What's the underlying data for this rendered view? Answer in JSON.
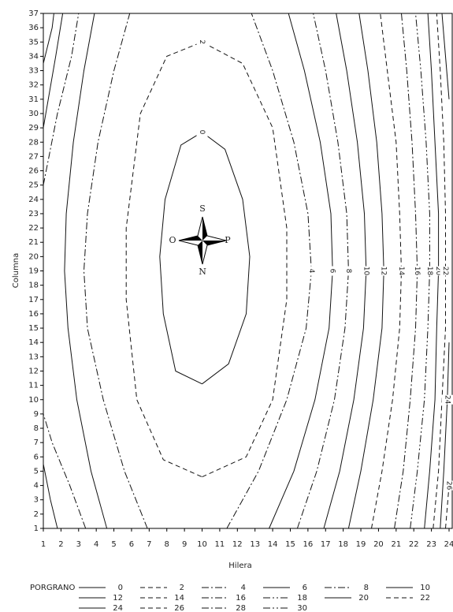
{
  "chart_data": {
    "type": "contour",
    "x_label": "Hilera",
    "y_label": "Columna",
    "legend_title": "PORGRANO",
    "xlim": [
      1,
      24
    ],
    "ylim": [
      1,
      37
    ],
    "xticks": [
      1,
      2,
      3,
      4,
      5,
      6,
      7,
      8,
      9,
      10,
      11,
      12,
      13,
      14,
      15,
      16,
      17,
      18,
      19,
      20,
      21,
      22,
      23,
      24
    ],
    "yticks": [
      1,
      2,
      3,
      4,
      5,
      6,
      7,
      8,
      9,
      10,
      11,
      12,
      13,
      14,
      15,
      16,
      17,
      18,
      19,
      20,
      21,
      22,
      23,
      24,
      25,
      26,
      27,
      28,
      29,
      30,
      31,
      32,
      33,
      34,
      35,
      36,
      37
    ],
    "compass": {
      "top": "S",
      "left": "O",
      "right": "P",
      "bottom": "N"
    },
    "contours": [
      {
        "level": "0",
        "style": "solid",
        "x": [
          10,
          11.5,
          12.5,
          12.7,
          12.3,
          11.3,
          10,
          8.8,
          7.9,
          7.6,
          7.8,
          8.5,
          10
        ],
        "y": [
          11.1,
          12.5,
          16,
          20,
          24,
          27.5,
          28.7,
          27.8,
          24,
          20,
          16,
          12,
          11.1
        ]
      },
      {
        "level": "2",
        "style": "dash",
        "x": [
          10,
          12.5,
          14,
          14.8,
          14.8,
          14,
          12.3,
          10,
          8,
          6.5,
          5.7,
          5.7,
          6.3,
          7.8,
          10
        ],
        "y": [
          4.6,
          6,
          10,
          17,
          22,
          29,
          33.5,
          35,
          34,
          30,
          22,
          17,
          10,
          5.8,
          4.6
        ]
      },
      {
        "level": "4",
        "style": "dashdot",
        "x": [
          11.4,
          13.2,
          14.8,
          15.9,
          16.2,
          16.0,
          15.2,
          14.0,
          12.8,
          null,
          6.9,
          5.6,
          4.4,
          3.5,
          3.3,
          3.5,
          4.1,
          5.0,
          5.9
        ],
        "y": [
          1,
          5,
          10,
          15,
          19,
          23,
          28,
          33,
          37,
          null,
          1,
          5,
          10,
          15,
          19,
          23,
          28,
          33,
          37
        ]
      },
      {
        "level": "6",
        "style": "solid",
        "x": [
          13.8,
          15.2,
          16.4,
          17.2,
          17.4,
          17.3,
          16.7,
          15.8,
          14.9,
          null,
          4.6,
          3.7,
          2.9,
          2.4,
          2.2,
          2.3,
          2.7,
          3.3,
          3.9
        ],
        "y": [
          1,
          5,
          10,
          15,
          19,
          23,
          28,
          33,
          37,
          null,
          1,
          5,
          10,
          15,
          19,
          23,
          28,
          33,
          37
        ]
      },
      {
        "level": "8",
        "style": "dashdot",
        "x": [
          15.4,
          16.5,
          17.5,
          18.1,
          18.3,
          18.2,
          17.7,
          17.0,
          16.3,
          null,
          3.4,
          2.5,
          1.5,
          1,
          null,
          1,
          1.8,
          2.6,
          3
        ],
        "y": [
          1,
          5,
          10,
          15,
          19,
          23,
          28,
          33,
          37,
          null,
          1,
          4,
          7,
          9,
          null,
          25,
          30,
          34,
          37
        ]
      },
      {
        "level": "10",
        "style": "solid",
        "x": [
          16.9,
          17.8,
          18.6,
          19.15,
          19.3,
          19.2,
          18.8,
          18.2,
          17.6,
          null,
          1.8,
          1.4,
          1,
          null,
          1,
          1.7,
          2.1
        ],
        "y": [
          1,
          5,
          10,
          15,
          19,
          23,
          28,
          33,
          37,
          null,
          1,
          3,
          5.5,
          null,
          29,
          34,
          37
        ]
      },
      {
        "level": "12",
        "style": "solid",
        "x": [
          18.3,
          19.0,
          19.7,
          20.2,
          20.3,
          20.2,
          19.9,
          19.4,
          18.9,
          null,
          1,
          1.5,
          1.6
        ],
        "y": [
          1,
          5,
          10,
          15,
          19,
          23,
          28,
          33,
          37,
          null,
          33.5,
          36,
          37
        ]
      },
      {
        "level": "14",
        "style": "dash",
        "x": [
          19.6,
          20.2,
          20.8,
          21.2,
          21.3,
          21.2,
          21.0,
          20.5,
          20.1
        ],
        "y": [
          1,
          5,
          10,
          15,
          19,
          23,
          28,
          33,
          37
        ]
      },
      {
        "level": "16",
        "style": "dashdot",
        "x": [
          20.9,
          21.4,
          21.8,
          22.1,
          22.2,
          22.1,
          21.9,
          21.6,
          21.3
        ],
        "y": [
          1,
          5,
          10,
          15,
          19,
          23,
          28,
          33,
          37
        ]
      },
      {
        "level": "18",
        "style": "dashdotdot",
        "x": [
          21.8,
          22.2,
          22.6,
          22.8,
          22.9,
          22.9,
          22.7,
          22.4,
          22.1
        ],
        "y": [
          1,
          5,
          10,
          15,
          19,
          23,
          28,
          33,
          37
        ]
      },
      {
        "level": "20",
        "style": "solid",
        "x": [
          22.6,
          22.9,
          23.2,
          23.3,
          23.4,
          23.4,
          23.2,
          23.0,
          22.8
        ],
        "y": [
          1,
          5,
          10,
          15,
          19,
          23,
          28,
          33,
          37
        ]
      },
      {
        "level": "22",
        "style": "dash",
        "x": [
          23.1,
          23.4,
          23.6,
          23.8,
          23.8,
          23.8,
          23.7,
          23.5,
          23.3
        ],
        "y": [
          1,
          5,
          10,
          15,
          19,
          23,
          28,
          33,
          37
        ]
      },
      {
        "level": "24",
        "style": "solid",
        "x": [
          23.5,
          23.7,
          23.9,
          24,
          null,
          24,
          23.8,
          23.6
        ],
        "y": [
          1,
          5,
          10,
          14,
          null,
          31,
          34,
          37
        ]
      },
      {
        "level": "26",
        "style": "dash",
        "x": [
          23.8,
          24
        ],
        "y": [
          1,
          4
        ]
      },
      {
        "level": "28",
        "style": "dashdot",
        "x": [],
        "y": []
      },
      {
        "level": "30",
        "style": "dashdotdot",
        "x": [],
        "y": []
      }
    ]
  }
}
